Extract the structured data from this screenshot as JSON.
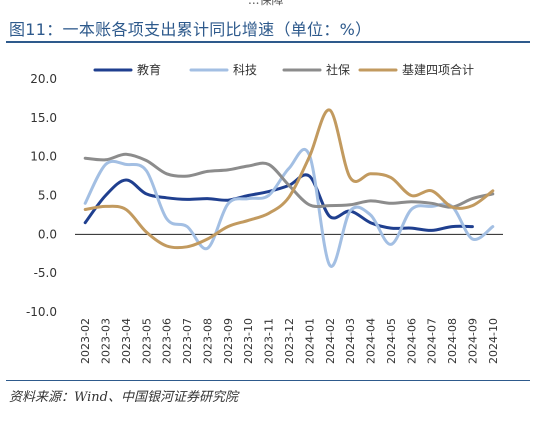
{
  "header": {
    "top_cut_text": "...保障",
    "title": "图11：一本账各项支出累计同比增速（单位：%）"
  },
  "footer": {
    "source": "资料来源：Wind、中国银河证券研究院"
  },
  "chart_data": {
    "type": "line",
    "title": "图11：一本账各项支出累计同比增速（单位：%）",
    "xlabel": "",
    "ylabel": "",
    "ylim": [
      -10,
      20
    ],
    "yticks": [
      "20.0",
      "15.0",
      "10.0",
      "5.0",
      "0.0",
      "-5.0",
      "-10.0"
    ],
    "grid": false,
    "legend_position": "top",
    "categories": [
      "2023-02",
      "2023-03",
      "2023-04",
      "2023-05",
      "2023-06",
      "2023-07",
      "2023-08",
      "2023-09",
      "2023-10",
      "2023-11",
      "2023-12",
      "2024-01",
      "2024-02",
      "2024-03",
      "2024-04",
      "2024-05",
      "2024-06",
      "2024-07",
      "2024-08",
      "2024-09",
      "2024-10"
    ],
    "series": [
      {
        "name": "教育",
        "color": "#1f3f8f",
        "values": [
          1.5,
          5.0,
          7.0,
          5.2,
          4.7,
          4.5,
          4.6,
          4.4,
          5.0,
          5.5,
          6.3,
          7.5,
          2.3,
          3.0,
          1.5,
          0.8,
          0.8,
          0.5,
          1.0,
          1.0,
          null
        ]
      },
      {
        "name": "科技",
        "color": "#a3bfe3",
        "values": [
          4.0,
          9.0,
          9.0,
          8.2,
          2.0,
          1.0,
          -1.8,
          3.9,
          4.6,
          5.0,
          8.5,
          10.2,
          -4.0,
          3.0,
          2.5,
          -1.3,
          3.2,
          3.6,
          3.6,
          -0.6,
          1.0
        ]
      },
      {
        "name": "社保",
        "color": "#8c8c8c",
        "values": [
          9.8,
          9.6,
          10.3,
          9.5,
          7.8,
          7.5,
          8.1,
          8.3,
          8.8,
          9.0,
          6.3,
          3.8,
          3.7,
          3.8,
          4.3,
          4.0,
          4.2,
          4.0,
          3.5,
          4.6,
          5.2
        ]
      },
      {
        "name": "基建四项合计",
        "color": "#c29a5f",
        "values": [
          3.2,
          3.6,
          3.2,
          0.3,
          -1.5,
          -1.6,
          -0.6,
          1.0,
          1.8,
          2.7,
          4.8,
          10.0,
          16.0,
          7.3,
          7.8,
          7.3,
          5.0,
          5.6,
          3.5,
          3.7,
          5.6
        ]
      }
    ]
  }
}
